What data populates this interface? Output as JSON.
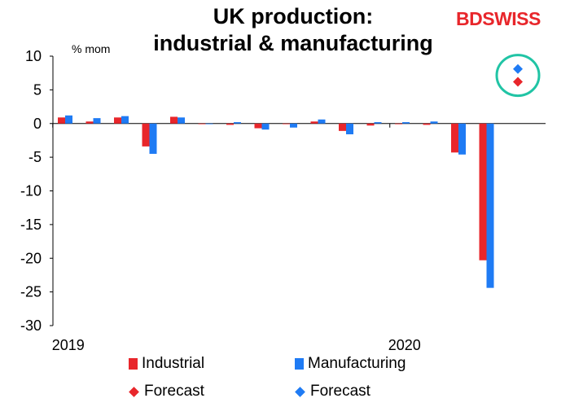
{
  "chart_data": {
    "type": "bar",
    "title_line1": "UK production:",
    "title_line2": "industrial & manufacturing",
    "ylabel": "% mom",
    "ylim": [
      -30,
      10
    ],
    "yticks": [
      10,
      5,
      0,
      -5,
      -10,
      -15,
      -20,
      -25,
      -30
    ],
    "ytick_labels": [
      "10",
      "5",
      "0",
      "-5",
      "-10",
      "-15",
      "-20",
      "-25",
      "-30"
    ],
    "x_labels": [
      {
        "label": "2019",
        "index": 0
      },
      {
        "label": "2020",
        "index": 12
      }
    ],
    "series": [
      {
        "name": "Industrial",
        "color": "#e8262b",
        "values": [
          0.9,
          0.3,
          0.9,
          -3.4,
          1.0,
          0.0,
          -0.2,
          -0.7,
          0.0,
          0.3,
          -1.1,
          -0.3,
          -0.1,
          -0.2,
          -4.3,
          -20.3,
          null
        ]
      },
      {
        "name": "Manufacturing",
        "color": "#1f7bf4",
        "values": [
          1.2,
          0.8,
          1.1,
          -4.5,
          0.9,
          0.0,
          0.2,
          -0.9,
          -0.6,
          0.6,
          -1.6,
          0.2,
          0.2,
          0.3,
          -4.6,
          -24.4,
          null
        ]
      }
    ],
    "forecast": [
      {
        "name": "Forecast",
        "series": "Industrial",
        "color": "#e8262b",
        "index": 16,
        "value": 6.2
      },
      {
        "name": "Forecast",
        "series": "Manufacturing",
        "color": "#1f7bf4",
        "index": 16,
        "value": 8.1
      }
    ],
    "highlight_color": "#21c4a5"
  },
  "branding": {
    "bd": "BD",
    "swiss": "SWISS"
  },
  "legend": {
    "industrial": "Industrial",
    "manufacturing": "Manufacturing",
    "forecast_industrial": "Forecast",
    "forecast_manufacturing": "Forecast"
  }
}
